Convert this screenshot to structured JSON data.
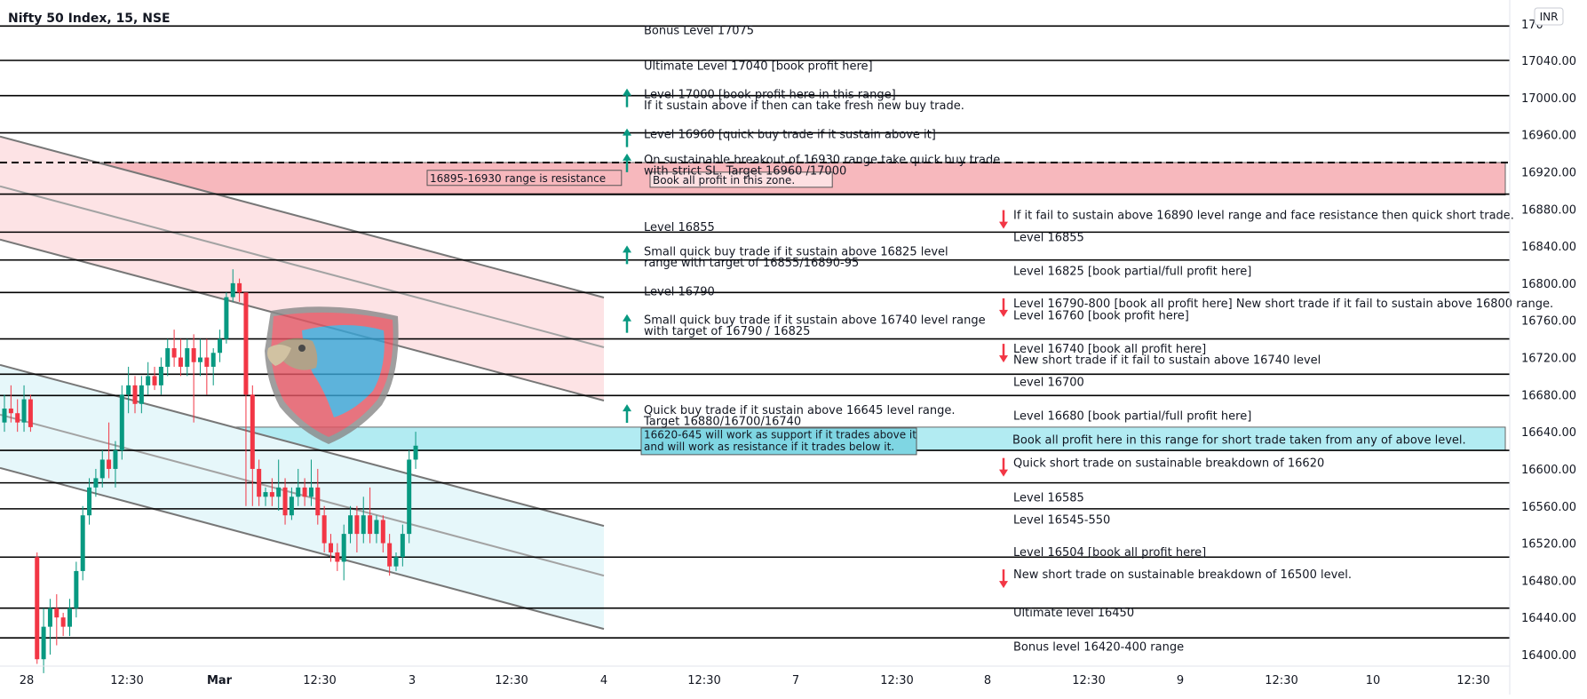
{
  "chart_data": {
    "type": "candlestick",
    "title": "Nifty 50 Index, 15, NSE",
    "currency": "INR",
    "ylim": [
      16390,
      17085
    ],
    "y_ticks": [
      "17040.00",
      "17000.00",
      "16960.00",
      "16920.00",
      "16880.00",
      "16840.00",
      "16800.00",
      "16760.00",
      "16720.00",
      "16680.00",
      "16640.00",
      "16600.00",
      "16560.00",
      "16520.00",
      "16480.00",
      "16440.00",
      "16400.00"
    ],
    "y_tick_values": [
      17040,
      17000,
      16960,
      16920,
      16880,
      16840,
      16800,
      16760,
      16720,
      16680,
      16640,
      16600,
      16560,
      16520,
      16480,
      16440,
      16400
    ],
    "y_top_partial": "170",
    "x_ticks": [
      "28",
      "12:30",
      "Mar",
      "12:30",
      "3",
      "12:30",
      "4",
      "12:30",
      "7",
      "12:30",
      "8",
      "12:30",
      "9",
      "12:30",
      "10",
      "12:30"
    ],
    "levels": [
      17077,
      17040,
      17002,
      16962,
      16896,
      16855,
      16825,
      16790,
      16740,
      16702,
      16679,
      16620,
      16585,
      16557,
      16505,
      16450,
      16418
    ],
    "zones": [
      {
        "from": 16895,
        "to": 16930,
        "color": "#f7b8bd",
        "label": "Book all profit in this zone."
      },
      {
        "from": 16620,
        "to": 16645,
        "color": "#b2ebf2",
        "label": "Book all profit here in this range for short trade taken from any of above level."
      }
    ],
    "dashed_level": 16930,
    "range_labels": [
      {
        "text": "16895-16930 range is resistance",
        "y": 16913
      },
      {
        "text": "16620-645 will work as support if it trades above it",
        "y": 16637
      },
      {
        "text": "and will work as resistance if it trades below it.",
        "y": 16624
      }
    ],
    "annotations_left": [
      {
        "text": "Bonus Level 17075",
        "y": 17072,
        "arrow": "none"
      },
      {
        "text": "Ultimate Level 17040 [book profit here]",
        "y": 17034,
        "arrow": "none"
      },
      {
        "text": "Level 17000 [book profit here in this range]",
        "y": 17003,
        "arrow": "up"
      },
      {
        "text": "If it sustain above if then can take fresh new buy trade.",
        "y": 16991,
        "arrow": "none"
      },
      {
        "text": "Level 16960 [quick buy trade if it sustain above it]",
        "y": 16960,
        "arrow": "up"
      },
      {
        "text": "On sustainable breakout of 16930 range take quick buy trade",
        "y": 16933,
        "arrow": "up"
      },
      {
        "text": "with strict SL. Target 16960 /17000",
        "y": 16921,
        "arrow": "none"
      },
      {
        "text": "Level 16855",
        "y": 16860,
        "arrow": "none"
      },
      {
        "text": "Small quick buy trade if it sustain above 16825 level",
        "y": 16834,
        "arrow": "up"
      },
      {
        "text": "range with target of 16855/16890-95",
        "y": 16822,
        "arrow": "none"
      },
      {
        "text": "Level 16790",
        "y": 16791,
        "arrow": "none"
      },
      {
        "text": "Small quick buy trade if it sustain above 16740 level range",
        "y": 16760,
        "arrow": "up"
      },
      {
        "text": "with target of 16790 / 16825",
        "y": 16748,
        "arrow": "none"
      },
      {
        "text": "Quick buy trade if it sustain above 16645 level range.",
        "y": 16663,
        "arrow": "up"
      },
      {
        "text": "Target 16880/16700/16740",
        "y": 16651,
        "arrow": "none"
      }
    ],
    "annotations_right": [
      {
        "text": "If it fail to sustain above 16890 level range and face resistance then quick short trade.",
        "y": 16873,
        "arrow": "down"
      },
      {
        "text": "Level 16855",
        "y": 16849,
        "arrow": "none"
      },
      {
        "text": "Level 16825 [book partial/full profit here]",
        "y": 16813,
        "arrow": "none"
      },
      {
        "text": "Level 16790-800 [book all profit here] New short trade if it fail to sustain above 16800 range.",
        "y": 16778,
        "arrow": "down"
      },
      {
        "text": "Level 16760 [book profit here]",
        "y": 16765,
        "arrow": "none"
      },
      {
        "text": "Level 16740 [book all profit here]",
        "y": 16729,
        "arrow": "down"
      },
      {
        "text": "New short trade if it fail to sustain above 16740 level",
        "y": 16717,
        "arrow": "none"
      },
      {
        "text": "Level 16700",
        "y": 16693,
        "arrow": "none"
      },
      {
        "text": "Level 16680 [book partial/full profit here]",
        "y": 16657,
        "arrow": "none"
      },
      {
        "text": "Book all profit here in this range for short trade taken from any of above level.",
        "y": 16632,
        "arrow": "none"
      },
      {
        "text": "Quick short trade on sustainable breakdown of 16620",
        "y": 16606,
        "arrow": "down"
      },
      {
        "text": "Level 16585",
        "y": 16569,
        "arrow": "none"
      },
      {
        "text": "Level 16545-550",
        "y": 16545,
        "arrow": "none"
      },
      {
        "text": "Level 16504 [book all profit here]",
        "y": 16510,
        "arrow": "none"
      },
      {
        "text": "New short trade on sustainable breakdown of 16500 level.",
        "y": 16486,
        "arrow": "down"
      },
      {
        "text": "Ultimate level 16450",
        "y": 16445,
        "arrow": "none"
      },
      {
        "text": "Bonus level 16420-400 range",
        "y": 16408,
        "arrow": "none"
      }
    ],
    "candles": [
      [
        16650,
        16680,
        16640,
        16665
      ],
      [
        16665,
        16690,
        16650,
        16660
      ],
      [
        16660,
        16675,
        16640,
        16650
      ],
      [
        16650,
        16690,
        16640,
        16675
      ],
      [
        16675,
        16680,
        16640,
        16645
      ],
      [
        16505,
        16510,
        16390,
        16395
      ],
      [
        16395,
        16450,
        16380,
        16430
      ],
      [
        16430,
        16460,
        16400,
        16450
      ],
      [
        16450,
        16465,
        16410,
        16440
      ],
      [
        16440,
        16445,
        16420,
        16430
      ],
      [
        16430,
        16460,
        16420,
        16450
      ],
      [
        16450,
        16500,
        16440,
        16490
      ],
      [
        16490,
        16560,
        16480,
        16550
      ],
      [
        16550,
        16590,
        16540,
        16580
      ],
      [
        16580,
        16600,
        16570,
        16590
      ],
      [
        16590,
        16620,
        16580,
        16610
      ],
      [
        16610,
        16650,
        16590,
        16600
      ],
      [
        16600,
        16630,
        16580,
        16620
      ],
      [
        16620,
        16690,
        16610,
        16680
      ],
      [
        16680,
        16710,
        16660,
        16690
      ],
      [
        16690,
        16700,
        16660,
        16670
      ],
      [
        16670,
        16700,
        16660,
        16690
      ],
      [
        16690,
        16715,
        16680,
        16700
      ],
      [
        16700,
        16710,
        16685,
        16690
      ],
      [
        16690,
        16720,
        16680,
        16710
      ],
      [
        16710,
        16740,
        16700,
        16730
      ],
      [
        16730,
        16750,
        16710,
        16720
      ],
      [
        16720,
        16740,
        16700,
        16710
      ],
      [
        16710,
        16740,
        16700,
        16730
      ],
      [
        16730,
        16745,
        16650,
        16715
      ],
      [
        16715,
        16740,
        16700,
        16720
      ],
      [
        16720,
        16740,
        16680,
        16710
      ],
      [
        16710,
        16730,
        16690,
        16725
      ],
      [
        16725,
        16750,
        16715,
        16740
      ],
      [
        16740,
        16790,
        16735,
        16785
      ],
      [
        16785,
        16815,
        16780,
        16800
      ],
      [
        16800,
        16805,
        16780,
        16790
      ],
      [
        16790,
        16790,
        16560,
        16680
      ],
      [
        16680,
        16690,
        16560,
        16600
      ],
      [
        16600,
        16610,
        16560,
        16570
      ],
      [
        16570,
        16580,
        16560,
        16575
      ],
      [
        16575,
        16590,
        16560,
        16570
      ],
      [
        16570,
        16610,
        16555,
        16580
      ],
      [
        16580,
        16590,
        16540,
        16550
      ],
      [
        16550,
        16580,
        16545,
        16570
      ],
      [
        16570,
        16600,
        16560,
        16580
      ],
      [
        16580,
        16590,
        16560,
        16570
      ],
      [
        16570,
        16610,
        16560,
        16580
      ],
      [
        16580,
        16600,
        16540,
        16550
      ],
      [
        16550,
        16560,
        16510,
        16520
      ],
      [
        16520,
        16530,
        16500,
        16510
      ],
      [
        16510,
        16520,
        16490,
        16500
      ],
      [
        16500,
        16540,
        16480,
        16530
      ],
      [
        16530,
        16560,
        16520,
        16550
      ],
      [
        16550,
        16560,
        16510,
        16530
      ],
      [
        16530,
        16570,
        16520,
        16550
      ],
      [
        16550,
        16580,
        16520,
        16530
      ],
      [
        16530,
        16550,
        16520,
        16545
      ],
      [
        16545,
        16550,
        16510,
        16520
      ],
      [
        16520,
        16530,
        16485,
        16495
      ],
      [
        16495,
        16510,
        16490,
        16505
      ],
      [
        16505,
        16540,
        16495,
        16530
      ],
      [
        16530,
        16620,
        16520,
        16610
      ],
      [
        16610,
        16640,
        16600,
        16625
      ]
    ],
    "channels": [
      {
        "name": "upper",
        "points": [
          [
            0,
            16958
          ],
          [
            596,
            16806
          ]
        ],
        "fill": "#fde3e5"
      },
      {
        "name": "lower",
        "points": [
          [
            0,
            16712
          ],
          [
            596,
            16560
          ]
        ],
        "fill": "#e6f7fa"
      }
    ],
    "colors": {
      "up": "#089981",
      "down": "#f23645",
      "grid_line": "#000000",
      "channel_line": "#777777"
    }
  }
}
